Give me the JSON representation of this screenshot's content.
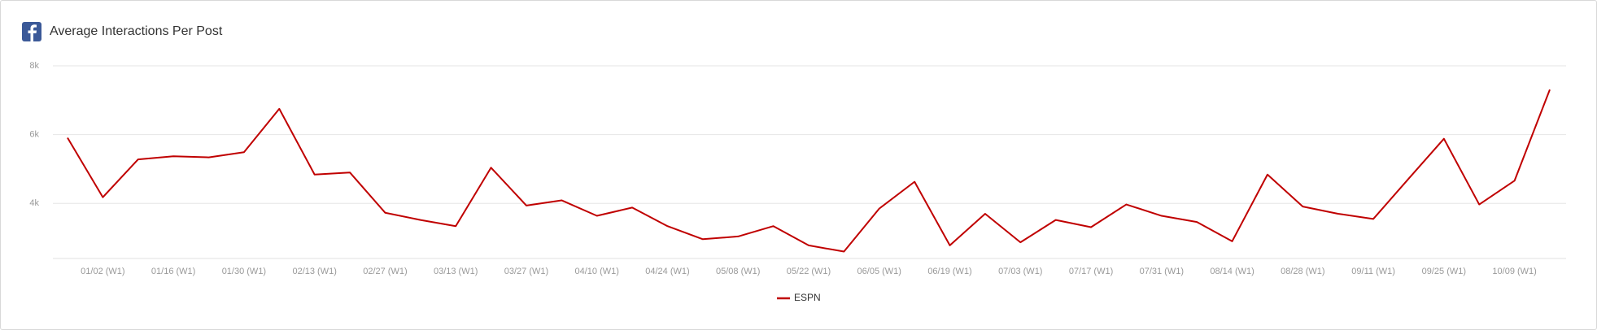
{
  "chart_data": {
    "type": "line",
    "title": "Average Interactions Per Post",
    "categories": [
      null,
      "01/02 (W1)",
      null,
      "01/16 (W1)",
      null,
      "01/30 (W1)",
      null,
      "02/13 (W1)",
      null,
      "02/27 (W1)",
      null,
      "03/13 (W1)",
      null,
      "03/27 (W1)",
      null,
      "04/10 (W1)",
      null,
      "04/24 (W1)",
      null,
      "05/08 (W1)",
      null,
      "05/22 (W1)",
      null,
      "06/05 (W1)",
      null,
      "06/19 (W1)",
      null,
      "07/03 (W1)",
      null,
      "07/17 (W1)",
      null,
      "07/31 (W1)",
      null,
      "08/14 (W1)",
      null,
      "08/28 (W1)",
      null,
      "09/11 (W1)",
      null,
      "09/25 (W1)",
      null,
      "10/09 (W1)",
      null
    ],
    "series": [
      {
        "name": "ESPN",
        "color": "#c00000",
        "values": [
          5910,
          4180,
          5280,
          5370,
          5340,
          5490,
          6750,
          4840,
          4900,
          3730,
          3520,
          3340,
          5040,
          3940,
          4090,
          3640,
          3880,
          3340,
          2960,
          3040,
          3340,
          2780,
          2600,
          3850,
          4630,
          2780,
          3700,
          2870,
          3520,
          3310,
          3970,
          3640,
          3460,
          2900,
          4840,
          3910,
          3700,
          3550,
          4720,
          5880,
          3970,
          4660,
          7310
        ]
      }
    ],
    "ylim": [
      2400,
      8000
    ],
    "yticks": [
      {
        "value": 4000,
        "label": "4k"
      },
      {
        "value": 6000,
        "label": "6k"
      },
      {
        "value": 8000,
        "label": "8k"
      }
    ],
    "grid": true
  }
}
